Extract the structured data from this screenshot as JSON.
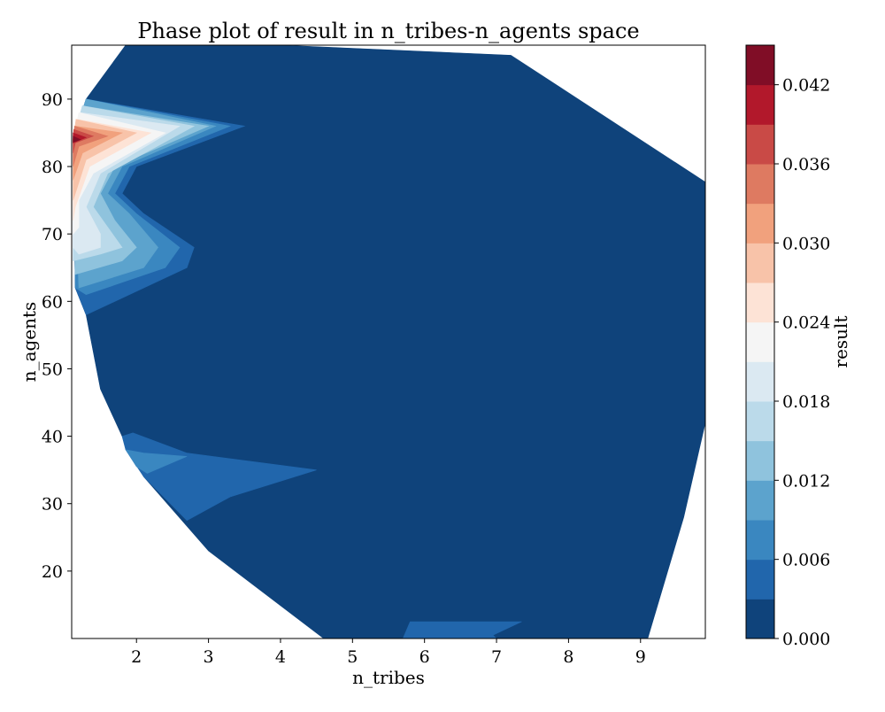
{
  "chart_data": {
    "type": "contourf",
    "title": "Phase plot of result in n_tribes-n_agents space",
    "xlabel": "n_tribes",
    "ylabel": "n_agents",
    "xlim": [
      1.1,
      9.9
    ],
    "ylim": [
      10,
      98
    ],
    "x_ticks": [
      "2",
      "3",
      "4",
      "5",
      "6",
      "7",
      "8",
      "9"
    ],
    "y_ticks": [
      "20",
      "30",
      "40",
      "50",
      "60",
      "70",
      "80",
      "90"
    ],
    "colorbar": {
      "label": "result",
      "min": 0.0,
      "max": 0.045,
      "tick_labels": [
        "0.000",
        "0.006",
        "0.012",
        "0.018",
        "0.024",
        "0.030",
        "0.036",
        "0.042"
      ],
      "levels": [
        0.0,
        0.003,
        0.006,
        0.009,
        0.012,
        0.015,
        0.018,
        0.021,
        0.024,
        0.027,
        0.03,
        0.033,
        0.036,
        0.039,
        0.042,
        0.045
      ],
      "colors": [
        "#0f437b",
        "#2166ac",
        "#3a87c0",
        "#5ca3cd",
        "#8fc3dd",
        "#bbdaea",
        "#dbe9f2",
        "#f5f5f5",
        "#fde3d6",
        "#f8c3a9",
        "#f1a17d",
        "#de7a61",
        "#c94a46",
        "#b2182b",
        "#800d26"
      ]
    },
    "regions": [
      {
        "level": 0,
        "points": [
          [
            1.3,
            90
          ],
          [
            1.85,
            98
          ],
          [
            4.0,
            98
          ],
          [
            7.2,
            96.5
          ],
          [
            9.9,
            77.7
          ],
          [
            9.9,
            42
          ],
          [
            9.6,
            28
          ],
          [
            9.1,
            10
          ],
          [
            4.6,
            10
          ],
          [
            3.0,
            23
          ],
          [
            2.1,
            34
          ],
          [
            1.8,
            40
          ],
          [
            1.5,
            47
          ],
          [
            1.3,
            58
          ],
          [
            1.15,
            62
          ],
          [
            1.12,
            84
          ]
        ]
      },
      {
        "level": 1,
        "points": [
          [
            1.3,
            90
          ],
          [
            3.5,
            86
          ],
          [
            2.0,
            80
          ],
          [
            1.8,
            76
          ],
          [
            2.1,
            73
          ],
          [
            2.8,
            68
          ],
          [
            2.7,
            65
          ],
          [
            1.3,
            58
          ],
          [
            1.15,
            62
          ],
          [
            1.12,
            84
          ]
        ]
      },
      {
        "level": 2,
        "points": [
          [
            1.3,
            90
          ],
          [
            3.3,
            86
          ],
          [
            1.9,
            80
          ],
          [
            1.7,
            76
          ],
          [
            2.0,
            73
          ],
          [
            2.6,
            68
          ],
          [
            2.4,
            65
          ],
          [
            1.3,
            61
          ],
          [
            1.15,
            62
          ],
          [
            1.12,
            84
          ]
        ]
      },
      {
        "level": 3,
        "points": [
          [
            1.3,
            90
          ],
          [
            3.1,
            86
          ],
          [
            1.8,
            80
          ],
          [
            1.6,
            76
          ],
          [
            1.9,
            73
          ],
          [
            2.3,
            68
          ],
          [
            2.1,
            65
          ],
          [
            1.2,
            62
          ],
          [
            1.12,
            84
          ]
        ]
      },
      {
        "level": 4,
        "points": [
          [
            1.25,
            89
          ],
          [
            3.0,
            86
          ],
          [
            1.7,
            80
          ],
          [
            1.5,
            76
          ],
          [
            1.7,
            72
          ],
          [
            2.0,
            68
          ],
          [
            1.8,
            66
          ],
          [
            1.15,
            64
          ],
          [
            1.12,
            84
          ]
        ]
      },
      {
        "level": 5,
        "points": [
          [
            1.25,
            89
          ],
          [
            2.8,
            86
          ],
          [
            1.6,
            79
          ],
          [
            1.4,
            74
          ],
          [
            1.6,
            71
          ],
          [
            1.8,
            68
          ],
          [
            1.5,
            67
          ],
          [
            1.12,
            66
          ],
          [
            1.12,
            84
          ]
        ]
      },
      {
        "level": 6,
        "points": [
          [
            1.22,
            88
          ],
          [
            2.6,
            86
          ],
          [
            1.5,
            79
          ],
          [
            1.3,
            74
          ],
          [
            1.5,
            70
          ],
          [
            1.5,
            68
          ],
          [
            1.2,
            67
          ],
          [
            1.12,
            68
          ],
          [
            1.12,
            84
          ]
        ]
      },
      {
        "level": 7,
        "points": [
          [
            1.2,
            88
          ],
          [
            2.4,
            85
          ],
          [
            1.4,
            79
          ],
          [
            1.2,
            75
          ],
          [
            1.2,
            71
          ],
          [
            1.12,
            70
          ],
          [
            1.12,
            84
          ]
        ]
      },
      {
        "level": 8,
        "points": [
          [
            1.18,
            87
          ],
          [
            2.2,
            85
          ],
          [
            1.35,
            80
          ],
          [
            1.15,
            74
          ],
          [
            1.12,
            72
          ],
          [
            1.12,
            84
          ]
        ]
      },
      {
        "level": 9,
        "points": [
          [
            1.16,
            87
          ],
          [
            2.0,
            85
          ],
          [
            1.3,
            81
          ],
          [
            1.15,
            76
          ],
          [
            1.12,
            75
          ],
          [
            1.12,
            84
          ]
        ]
      },
      {
        "level": 10,
        "points": [
          [
            1.15,
            86
          ],
          [
            1.8,
            85
          ],
          [
            1.25,
            82
          ],
          [
            1.12,
            78
          ],
          [
            1.12,
            84
          ]
        ]
      },
      {
        "level": 11,
        "points": [
          [
            1.14,
            86
          ],
          [
            1.6,
            84.5
          ],
          [
            1.2,
            83
          ],
          [
            1.12,
            80
          ],
          [
            1.12,
            84
          ]
        ]
      },
      {
        "level": 12,
        "points": [
          [
            1.13,
            85.5
          ],
          [
            1.4,
            84.5
          ],
          [
            1.15,
            83.5
          ],
          [
            1.12,
            82
          ],
          [
            1.12,
            84
          ]
        ]
      },
      {
        "level": 13,
        "points": [
          [
            1.12,
            85
          ],
          [
            1.3,
            84.3
          ],
          [
            1.12,
            83.5
          ]
        ]
      },
      {
        "level": 14,
        "points": [
          [
            1.12,
            84.5
          ],
          [
            1.22,
            84.0
          ],
          [
            1.12,
            83.6
          ]
        ]
      },
      {
        "level": 1,
        "points": [
          [
            1.8,
            40
          ],
          [
            1.95,
            40.5
          ],
          [
            2.7,
            37.5
          ],
          [
            4.5,
            35
          ],
          [
            3.3,
            31
          ],
          [
            2.7,
            27.5
          ],
          [
            2.1,
            34
          ],
          [
            1.85,
            38
          ]
        ]
      },
      {
        "level": 2,
        "points": [
          [
            1.85,
            38
          ],
          [
            2.1,
            37.5
          ],
          [
            2.7,
            37
          ],
          [
            2.15,
            34.5
          ],
          [
            2.0,
            35.5
          ]
        ]
      },
      {
        "level": 1,
        "points": [
          [
            5.8,
            12.5
          ],
          [
            7.35,
            12.5
          ],
          [
            6.95,
            10.5
          ],
          [
            7.0,
            10
          ],
          [
            5.7,
            10
          ]
        ]
      }
    ]
  }
}
